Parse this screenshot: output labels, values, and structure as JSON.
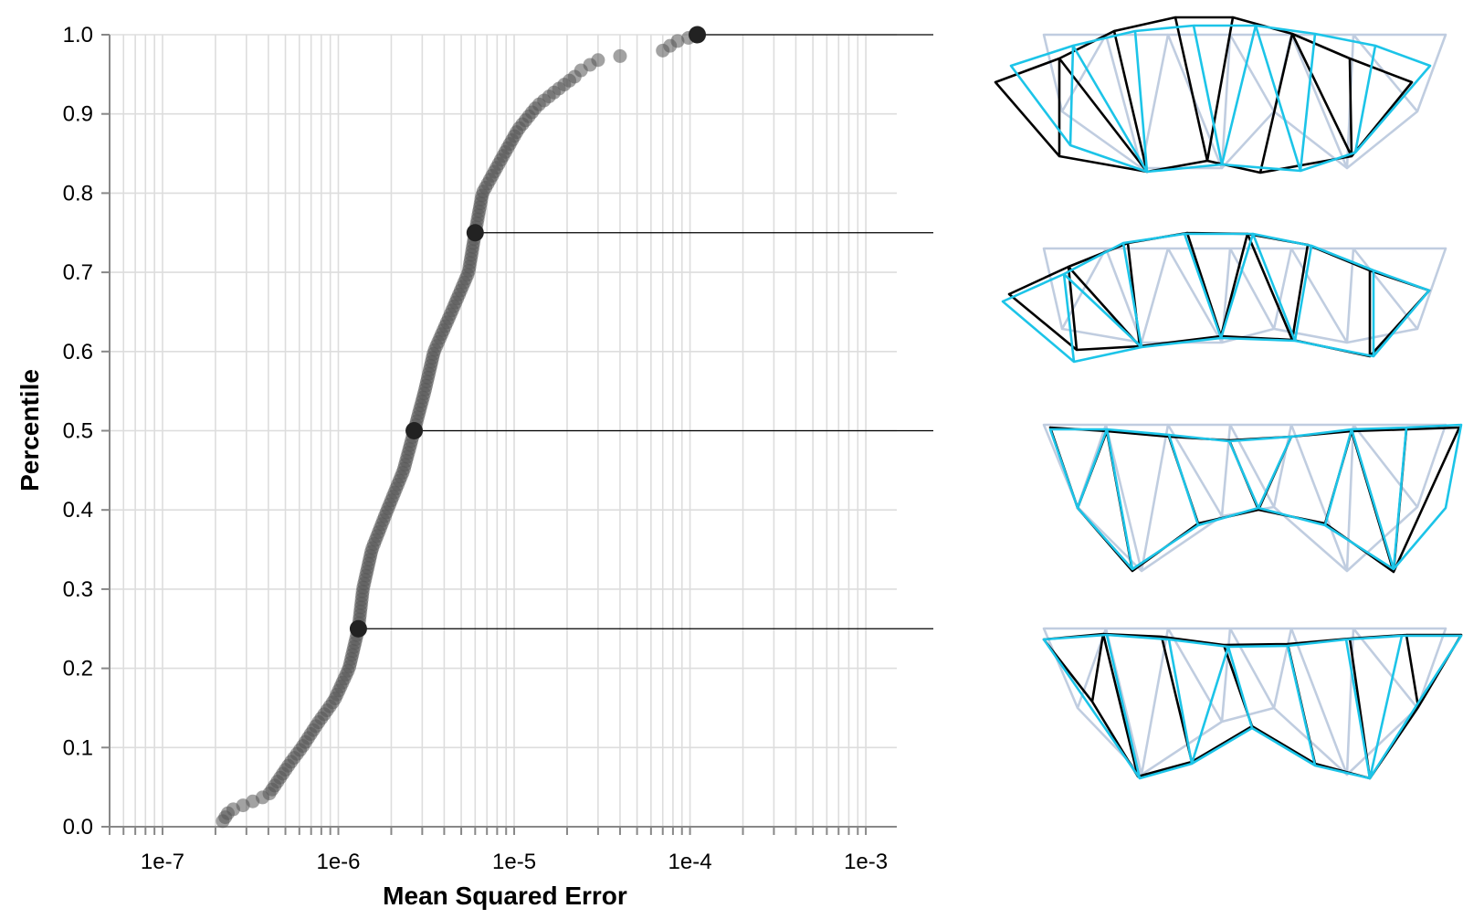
{
  "chart_data": {
    "type": "scatter",
    "xlabel": "Mean Squared Error",
    "ylabel": "Percentile",
    "xscale": "log",
    "xlim": [
      5e-08,
      0.0015
    ],
    "ylim": [
      0,
      1
    ],
    "x_tick_labels": [
      "1e-7",
      "1e-6",
      "1e-5",
      "1e-4",
      "1e-3"
    ],
    "y_ticks": [
      0.0,
      0.1,
      0.2,
      0.3,
      0.4,
      0.5,
      0.6,
      0.7,
      0.8,
      0.9,
      1.0
    ],
    "y_tick_labels": [
      "0.0",
      "0.1",
      "0.2",
      "0.3",
      "0.4",
      "0.5",
      "0.6",
      "0.7",
      "0.8",
      "0.9",
      "1.0"
    ],
    "grid": true,
    "colors": {
      "points": "#555555",
      "highlight": "#222222",
      "grid": "#dddddd",
      "axis": "#888888"
    },
    "quantile_points": [
      {
        "x": 1.3e-06,
        "y": 0.25
      },
      {
        "x": 2.7e-06,
        "y": 0.5
      },
      {
        "x": 6e-06,
        "y": 0.75
      },
      {
        "x": 0.00011,
        "y": 1.0
      }
    ],
    "curve_anchors": {
      "percentile": [
        0.007,
        0.02,
        0.04,
        0.06,
        0.08,
        0.1,
        0.13,
        0.16,
        0.2,
        0.25,
        0.3,
        0.35,
        0.4,
        0.45,
        0.5,
        0.55,
        0.6,
        0.65,
        0.7,
        0.75,
        0.8,
        0.85,
        0.88,
        0.91,
        0.93,
        0.95
      ],
      "mse": [
        2.2e-07,
        2.4e-07,
        4e-07,
        4.6e-07,
        5.3e-07,
        6.2e-07,
        7.6e-07,
        9.5e-07,
        1.15e-06,
        1.3e-06,
        1.38e-06,
        1.55e-06,
        1.9e-06,
        2.35e-06,
        2.7e-06,
        3.1e-06,
        3.5e-06,
        4.4e-06,
        5.5e-06,
        6e-06,
        6.6e-06,
        8.8e-06,
        1.05e-05,
        1.35e-05,
        1.75e-05,
        2.3e-05
      ]
    },
    "upper_tail": [
      {
        "x": 2.4e-05,
        "y": 0.955
      },
      {
        "x": 2.7e-05,
        "y": 0.962
      },
      {
        "x": 3e-05,
        "y": 0.968
      },
      {
        "x": 4e-05,
        "y": 0.973
      },
      {
        "x": 7e-05,
        "y": 0.98
      },
      {
        "x": 7.7e-05,
        "y": 0.986
      },
      {
        "x": 8.5e-05,
        "y": 0.992
      },
      {
        "x": 9.8e-05,
        "y": 0.996
      }
    ],
    "truss_colors": {
      "reference": "#c0cde0",
      "target": "#000000",
      "predicted": "#1cc4e8"
    }
  }
}
